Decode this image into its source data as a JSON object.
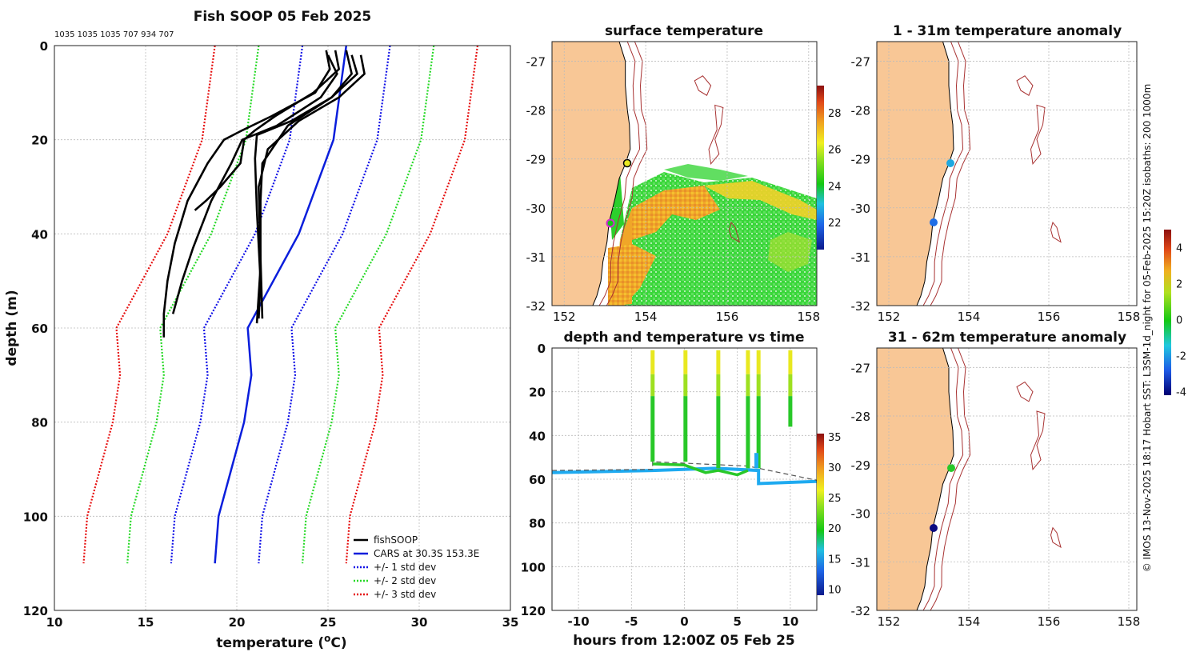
{
  "colors": {
    "land": "#f8c796",
    "isobath": "#a83232",
    "fishsoop": "#000000",
    "cars": "#0a1edc",
    "std1": "#1010e6",
    "std2": "#26d926",
    "std3": "#e61010"
  },
  "chart_data": [
    {
      "id": "profile",
      "type": "line",
      "title": "Fish SOOP 05 Feb 2025",
      "subtitle": "1035 1035 1035 707 934 707",
      "xlabel": "temperature (°C)",
      "ylabel": "depth (m)",
      "xlim": [
        10,
        35
      ],
      "ylim": [
        0,
        120
      ],
      "y_reversed": true,
      "x_ticks": [
        "10",
        "15",
        "20",
        "25",
        "30",
        "35"
      ],
      "y_ticks": [
        "0",
        "20",
        "40",
        "60",
        "80",
        "100",
        "120"
      ],
      "legend": [
        "fishSOOP",
        "CARS at 30.3S 153.3E",
        "+/- 1 std dev",
        "+/- 2 std dev",
        "+/- 3 std dev"
      ],
      "legend_position": "bottom-right",
      "cars_depth": [
        0,
        20,
        40,
        60,
        70,
        80,
        90,
        100,
        110
      ],
      "cars_temp": [
        26.0,
        25.3,
        23.4,
        20.6,
        20.8,
        20.4,
        19.7,
        19.0,
        18.8
      ],
      "std_offsets": [
        2.4,
        4.8,
        7.2
      ],
      "fishsoop_profiles": [
        {
          "t": [
            24.9,
            25.1,
            24.3,
            21.9,
            20.3,
            19.3,
            18.4,
            17.3,
            16.6,
            16.2,
            16.0,
            16.0
          ],
          "d": [
            1,
            5,
            10,
            15,
            18,
            20,
            25,
            33,
            42,
            50,
            57,
            62
          ]
        },
        {
          "t": [
            25.4,
            25.6,
            24.2,
            22.1,
            21.0,
            20.4,
            20.2,
            19.1,
            18.3,
            17.7
          ],
          "d": [
            1,
            5,
            10,
            15,
            18,
            20,
            25,
            30,
            33,
            35
          ]
        },
        {
          "t": [
            26.0,
            26.3,
            25.2,
            23.0,
            21.1,
            21.0,
            21.1,
            21.3,
            21.2
          ],
          "d": [
            1,
            6,
            11,
            16,
            19,
            24,
            35,
            50,
            58
          ]
        },
        {
          "t": [
            26.8,
            27.0,
            25.6,
            23.4,
            21.7,
            21.2,
            21.3,
            21.4
          ],
          "d": [
            2,
            6,
            11,
            16,
            22,
            30,
            45,
            58
          ]
        },
        {
          "t": [
            26.3,
            26.6,
            25.2,
            22.8,
            21.4,
            21.3,
            21.3,
            21.1
          ],
          "d": [
            2,
            6,
            11,
            17,
            25,
            33,
            47,
            59
          ]
        },
        {
          "t": [
            25.0,
            25.5,
            24.6,
            22.2,
            20.3,
            19.7,
            18.6,
            17.6,
            17.0,
            16.5
          ],
          "d": [
            2,
            6,
            11,
            17,
            20,
            25,
            33,
            43,
            50,
            57
          ]
        }
      ]
    },
    {
      "id": "surface",
      "type": "heatmap",
      "title": "surface temperature",
      "x_ticks": [
        "152",
        "154",
        "156",
        "158"
      ],
      "y_ticks": [
        "-27",
        "-28",
        "-29",
        "-30",
        "-31",
        "-32"
      ],
      "colorbar_ticks": [
        "22",
        "24",
        "26",
        "28"
      ],
      "colorbar_range": [
        20.5,
        29.5
      ],
      "markers": [
        {
          "lon": 153.6,
          "lat": -29.05,
          "color": "#e8e820"
        },
        {
          "lon": 153.2,
          "lat": -30.3,
          "color": "#d12bd1"
        }
      ]
    },
    {
      "id": "timeseries",
      "type": "scatter",
      "title": "depth and temperature vs time",
      "xlabel": "hours from 12:00Z 05 Feb 25",
      "x_ticks": [
        "-10",
        "-5",
        "0",
        "5",
        "10"
      ],
      "y_ticks": [
        "0",
        "20",
        "40",
        "60",
        "80",
        "100",
        "120"
      ],
      "xlim": [
        -12.5,
        12.5
      ],
      "ylim": [
        0,
        120
      ],
      "colorbar_ticks": [
        "10",
        "15",
        "20",
        "25",
        "30",
        "35"
      ],
      "casts_hours": [
        -3.0,
        0.1,
        3.2,
        6.0,
        7.0,
        10.0
      ],
      "cast_bottom_depth": [
        52,
        52,
        55,
        55,
        55,
        36
      ],
      "bottom_depth_series": [
        [
          -12.5,
          57
        ],
        [
          -3,
          56
        ],
        [
          3,
          55
        ],
        [
          7,
          56
        ],
        [
          7,
          62
        ],
        [
          12.5,
          61
        ]
      ]
    },
    {
      "id": "anomaly_upper",
      "type": "scatter",
      "title": "1 - 31m temperature anomaly",
      "x_ticks": [
        "152",
        "154",
        "156",
        "158"
      ],
      "y_ticks": [
        "-27",
        "-28",
        "-29",
        "-30",
        "-31",
        "-32"
      ],
      "markers": [
        {
          "lon": 153.65,
          "lat": -29.05,
          "value": -1.3
        },
        {
          "lon": 153.2,
          "lat": -30.25,
          "value": -2.5
        }
      ]
    },
    {
      "id": "anomaly_lower",
      "type": "scatter",
      "title": "31 - 62m temperature anomaly",
      "x_ticks": [
        "152",
        "154",
        "156",
        "158"
      ],
      "y_ticks": [
        "-27",
        "-28",
        "-29",
        "-30",
        "-31",
        "-32"
      ],
      "colorbar_ticks": [
        "4",
        "2",
        "0",
        "-2",
        "-4"
      ],
      "colorbar_range": [
        -4.2,
        5
      ],
      "markers": [
        {
          "lon": 153.65,
          "lat": -29.0,
          "value": 0.5
        },
        {
          "lon": 153.2,
          "lat": -30.15,
          "value": -4.0
        }
      ]
    }
  ],
  "credit": "© IMOS 13-Nov-2025 18:17 Hobart SST: L3SM-1d_night for 05-Feb-2025 15:20Z isobaths: 200  1000m"
}
